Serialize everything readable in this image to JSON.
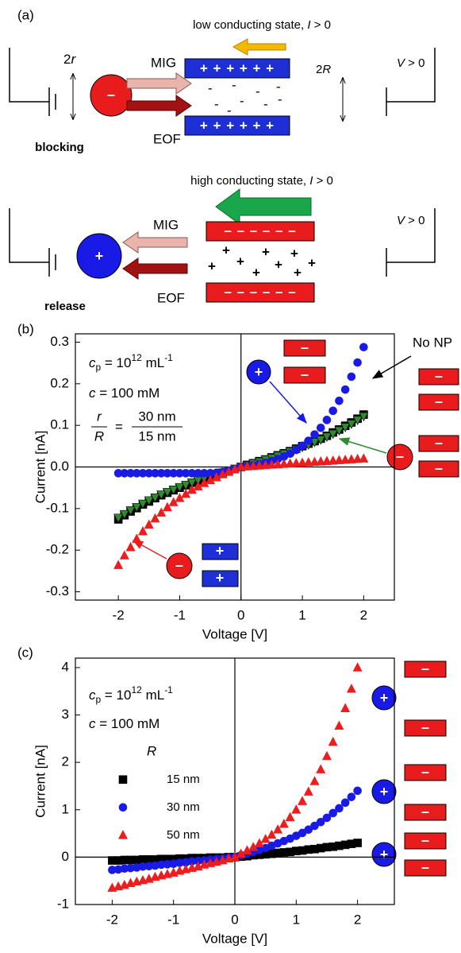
{
  "panel_a": {
    "label": "(a)",
    "top": {
      "state_text": "low conducting state, ",
      "current_var": "I",
      "current_relation": " > 0",
      "size_number": "2",
      "size_var": "r",
      "mig": "MIG",
      "eof": "EOF",
      "particle_state": "blocking",
      "particle_sign": "–",
      "pore_number": "2",
      "pore_var": "R",
      "voltage_var": "V",
      "voltage_relation": " > 0",
      "plate_signs": "+ + + + + +",
      "charge": "-"
    },
    "bottom": {
      "state_text": "high conducting state, ",
      "current_var": "I",
      "current_relation": " > 0",
      "mig": "MIG",
      "eof": "EOF",
      "particle_state": "release",
      "particle_sign": "+",
      "voltage_var": "V",
      "voltage_relation": " > 0",
      "plate_signs": "– – – – – –",
      "charge": "+"
    }
  },
  "chart_data": [
    {
      "type": "scatter",
      "panel_label": "(b)",
      "xlabel": "Voltage [V]",
      "ylabel": "Current [nA]",
      "xlim": [
        -2.7,
        2.5
      ],
      "ylim": [
        -0.32,
        0.32
      ],
      "xticks": [
        -2,
        -1,
        0,
        1,
        2
      ],
      "yticks": [
        -0.3,
        -0.2,
        -0.1,
        {
          "value": 0,
          "label": "0.0"
        },
        0.1,
        0.2,
        0.3
      ],
      "annotations": {
        "conc_var": "c",
        "conc_sub": "p",
        "conc_eq": " = 10",
        "conc_exp": "12",
        "conc_unit": " mL",
        "conc_unit_exp": "-1",
        "salt": " = 100 mM",
        "salt_var": "c",
        "ratio_num": "r",
        "ratio_den": "R",
        "ratio_eq": "=",
        "ratio_num_value": "30 nm",
        "ratio_den_value": "15 nm",
        "no_np": "No NP",
        "neg_sign": "–",
        "pos_sign": "+"
      },
      "x": [
        -2.0,
        -1.9,
        -1.8,
        -1.7,
        -1.6,
        -1.5,
        -1.4,
        -1.3,
        -1.2,
        -1.1,
        -1.0,
        -0.9,
        -0.8,
        -0.7,
        -0.6,
        -0.5,
        -0.4,
        -0.3,
        -0.2,
        -0.1,
        0,
        0.1,
        0.2,
        0.3,
        0.4,
        0.5,
        0.6,
        0.7,
        0.8,
        0.9,
        1.0,
        1.1,
        1.2,
        1.3,
        1.4,
        1.5,
        1.6,
        1.7,
        1.8,
        1.9,
        2.0
      ],
      "series": [
        {
          "color": "#000000",
          "marker": "square",
          "values": [
            -0.126,
            -0.116,
            -0.107,
            -0.099,
            -0.09,
            -0.083,
            -0.075,
            -0.068,
            -0.062,
            -0.056,
            -0.05,
            -0.044,
            -0.038,
            -0.033,
            -0.028,
            -0.023,
            -0.018,
            -0.014,
            -0.009,
            -0.005,
            0,
            0.005,
            0.009,
            0.014,
            0.018,
            0.023,
            0.028,
            0.033,
            0.038,
            0.044,
            0.05,
            0.056,
            0.062,
            0.068,
            0.075,
            0.083,
            0.09,
            0.099,
            0.107,
            0.116,
            0.126
          ]
        },
        {
          "color": "#2e8b2e",
          "marker": "triangle-down",
          "values": [
            -0.122,
            -0.113,
            -0.104,
            -0.096,
            -0.088,
            -0.08,
            -0.073,
            -0.066,
            -0.06,
            -0.054,
            -0.048,
            -0.043,
            -0.037,
            -0.032,
            -0.027,
            -0.022,
            -0.018,
            -0.013,
            -0.009,
            -0.004,
            0,
            0.004,
            0.009,
            0.013,
            0.018,
            0.022,
            0.027,
            0.032,
            0.037,
            0.043,
            0.048,
            0.054,
            0.06,
            0.066,
            0.073,
            0.08,
            0.088,
            0.096,
            0.104,
            0.113,
            0.122
          ]
        },
        {
          "color": "#1a1ae6",
          "marker": "circle",
          "values": [
            -0.015,
            -0.015,
            -0.015,
            -0.015,
            -0.015,
            -0.015,
            -0.015,
            -0.015,
            -0.015,
            -0.015,
            -0.015,
            -0.015,
            -0.015,
            -0.015,
            -0.015,
            -0.015,
            -0.014,
            -0.012,
            -0.009,
            -0.005,
            0,
            0.002,
            0.004,
            0.007,
            0.01,
            0.014,
            0.019,
            0.025,
            0.032,
            0.041,
            0.051,
            0.063,
            0.078,
            0.094,
            0.113,
            0.135,
            0.159,
            0.186,
            0.217,
            0.251,
            0.288
          ]
        },
        {
          "color": "#ee1c1c",
          "marker": "triangle",
          "values": [
            -0.236,
            -0.213,
            -0.193,
            -0.173,
            -0.155,
            -0.139,
            -0.124,
            -0.11,
            -0.097,
            -0.085,
            -0.075,
            -0.065,
            -0.055,
            -0.047,
            -0.039,
            -0.032,
            -0.025,
            -0.018,
            -0.012,
            -0.006,
            0,
            0.001,
            0.002,
            0.003,
            0.004,
            0.005,
            0.006,
            0.007,
            0.008,
            0.009,
            0.01,
            0.011,
            0.012,
            0.013,
            0.014,
            0.015,
            0.016,
            0.017,
            0.018,
            0.019,
            0.02
          ]
        }
      ]
    },
    {
      "type": "scatter",
      "panel_label": "(c)",
      "xlabel": "Voltage [V]",
      "ylabel": "Current [nA]",
      "xlim": [
        -2.6,
        2.6
      ],
      "ylim": [
        -1,
        4.2
      ],
      "xticks": [
        -2,
        -1,
        0,
        1,
        2
      ],
      "yticks": [
        -1,
        0,
        1,
        2,
        3,
        4
      ],
      "legend": "center left",
      "legend_title": "R",
      "annotations": {
        "conc_var": "c",
        "conc_sub": "p",
        "conc_eq": " = 10",
        "conc_exp": "12",
        "conc_unit": " mL",
        "conc_unit_exp": "-1",
        "salt": " = 100 mM",
        "salt_var": "c",
        "neg_sign": "–",
        "pos_sign": "+"
      },
      "x": [
        -2.0,
        -1.9,
        -1.8,
        -1.7,
        -1.6,
        -1.5,
        -1.4,
        -1.3,
        -1.2,
        -1.1,
        -1.0,
        -0.9,
        -0.8,
        -0.7,
        -0.6,
        -0.5,
        -0.4,
        -0.3,
        -0.2,
        -0.1,
        0,
        0.1,
        0.2,
        0.3,
        0.4,
        0.5,
        0.6,
        0.7,
        0.8,
        0.9,
        1.0,
        1.1,
        1.2,
        1.3,
        1.4,
        1.5,
        1.6,
        1.7,
        1.8,
        1.9,
        2.0
      ],
      "series": [
        {
          "name": "15 nm",
          "color": "#000000",
          "marker": "square",
          "values": [
            -0.07,
            -0.07,
            -0.06,
            -0.06,
            -0.06,
            -0.05,
            -0.05,
            -0.05,
            -0.04,
            -0.04,
            -0.04,
            -0.03,
            -0.03,
            -0.02,
            -0.02,
            -0.02,
            -0.01,
            -0.01,
            -0.01,
            0,
            0,
            0.01,
            0.02,
            0.04,
            0.05,
            0.06,
            0.07,
            0.09,
            0.1,
            0.11,
            0.13,
            0.14,
            0.16,
            0.17,
            0.19,
            0.21,
            0.22,
            0.24,
            0.26,
            0.28,
            0.3
          ]
        },
        {
          "name": "30 nm",
          "color": "#1a1ae6",
          "marker": "circle",
          "values": [
            -0.27,
            -0.26,
            -0.24,
            -0.23,
            -0.22,
            -0.2,
            -0.19,
            -0.18,
            -0.16,
            -0.15,
            -0.14,
            -0.12,
            -0.11,
            -0.09,
            -0.08,
            -0.07,
            -0.05,
            -0.04,
            -0.03,
            -0.01,
            0,
            0.04,
            0.07,
            0.11,
            0.15,
            0.19,
            0.24,
            0.29,
            0.34,
            0.39,
            0.45,
            0.51,
            0.58,
            0.66,
            0.74,
            0.83,
            0.93,
            1.03,
            1.15,
            1.27,
            1.4
          ]
        },
        {
          "name": "50 nm",
          "color": "#ee1c1c",
          "marker": "triangle",
          "values": [
            -0.65,
            -0.62,
            -0.59,
            -0.55,
            -0.52,
            -0.49,
            -0.46,
            -0.42,
            -0.39,
            -0.36,
            -0.33,
            -0.29,
            -0.26,
            -0.23,
            -0.2,
            -0.16,
            -0.13,
            -0.1,
            -0.07,
            -0.03,
            0,
            0.07,
            0.14,
            0.21,
            0.29,
            0.38,
            0.47,
            0.58,
            0.7,
            0.84,
            1.0,
            1.18,
            1.38,
            1.6,
            1.85,
            2.13,
            2.43,
            2.77,
            3.14,
            3.55,
            4.0
          ]
        }
      ]
    }
  ]
}
